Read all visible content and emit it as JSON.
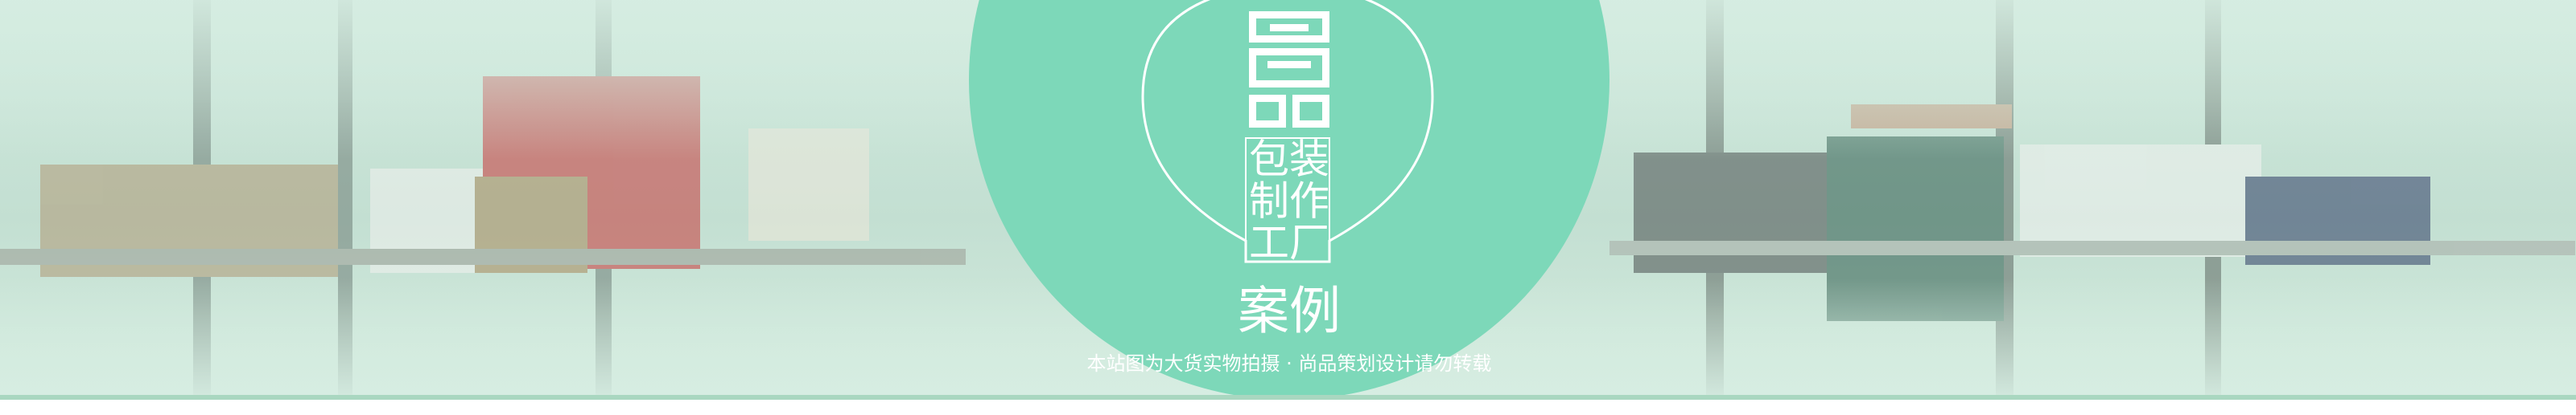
{
  "logo": {
    "lines": [
      "包装",
      "制作",
      "工厂"
    ]
  },
  "heading": "案例",
  "notice": "本站图为大货实物拍摄 · 尚品策划设计请勿转载"
}
